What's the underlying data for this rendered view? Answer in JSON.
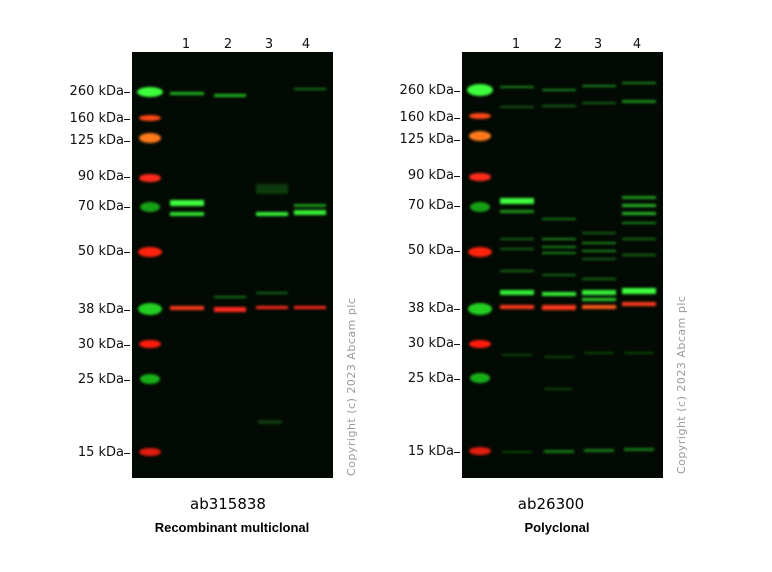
{
  "panels": [
    {
      "id": "ab315838",
      "type": "Recombinant multiclonal",
      "lanes": [
        "1",
        "2",
        "3",
        "4"
      ]
    },
    {
      "id": "ab26300",
      "type": "Polyclonal",
      "lanes": [
        "1",
        "2",
        "3",
        "4"
      ]
    }
  ],
  "markers": [
    "260 kDa",
    "160 kDa",
    "125 kDa",
    "90 kDa",
    "70 kDa",
    "50 kDa",
    "38 kDa",
    "30 kDa",
    "25 kDa",
    "15 kDa"
  ],
  "copyright": "Copyright (c) 2023 Abcam plc",
  "colors": {
    "green": "#2bff2b",
    "red": "#ff2a1a",
    "orange": "#ff6a10"
  }
}
